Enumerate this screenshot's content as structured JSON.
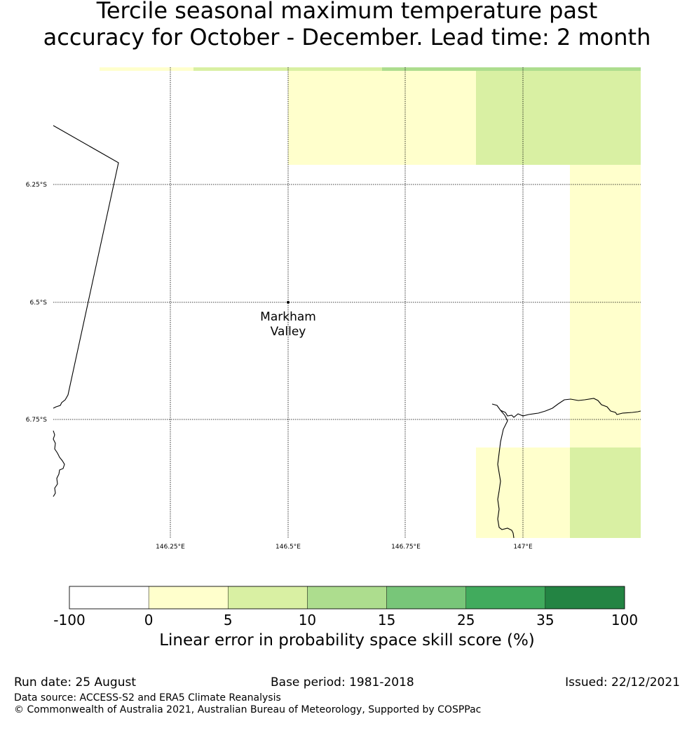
{
  "title_line1": "Tercile seasonal maximum temperature past",
  "title_line2": "accuracy for October - December. Lead time: 2 month",
  "map": {
    "lon_ticks": [
      "146.25°E",
      "146.5°E",
      "146.75°E",
      "147°E"
    ],
    "lat_ticks": [
      "6.25°S",
      "6.5°S",
      "6.75°S"
    ],
    "place": {
      "name_line1": "Markham",
      "name_line2": "Valley"
    }
  },
  "colorbar": {
    "boundaries": [
      "-100",
      "0",
      "5",
      "10",
      "15",
      "25",
      "35",
      "100"
    ],
    "colors": [
      "#ffffff",
      "#ffffcc",
      "#d9f0a3",
      "#addd8e",
      "#78c679",
      "#41ab5d",
      "#238443"
    ],
    "title": "Linear error in probability space skill score (%)"
  },
  "footer": {
    "run_date": "Run date: 25 August",
    "base_period": "Base period: 1981-2018",
    "issued": "Issued: 22/12/2021",
    "data_source": "Data source: ACCESS-S2 and ERA5 Climate Reanalysis",
    "copyright": "© Commonwealth of Australia 2021, Australian Bureau of Meteorology, Supported by COSPPac"
  }
}
